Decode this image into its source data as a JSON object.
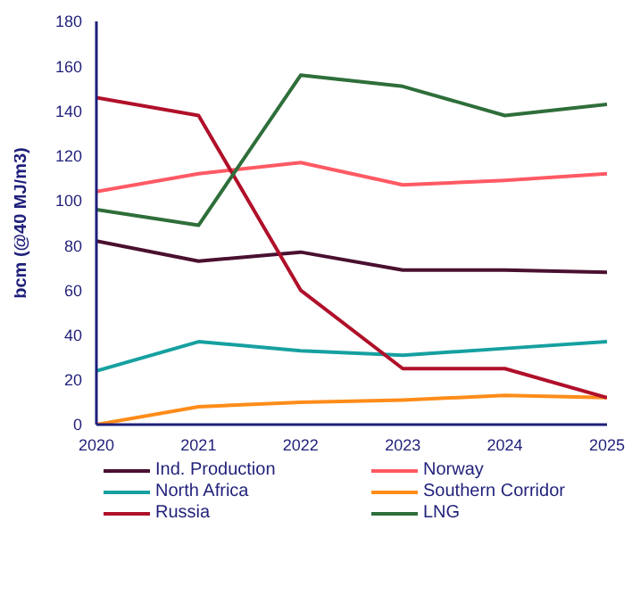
{
  "chart_data": {
    "type": "line",
    "ylabel": "bcm (@40 MJ/m3)",
    "x": [
      2020,
      2021,
      2022,
      2023,
      2024,
      2025
    ],
    "xlim": [
      2020,
      2025
    ],
    "xticks": [
      2020,
      2021,
      2022,
      2023,
      2024,
      2025
    ],
    "ylim": [
      0,
      180
    ],
    "yticks": [
      0,
      20,
      40,
      60,
      80,
      100,
      120,
      140,
      160,
      180
    ],
    "grid": false,
    "legend": "bottom",
    "marker": "none",
    "line_style": "solid",
    "series": [
      {
        "name": "Ind. Production",
        "color": "#4a1030",
        "values": [
          82,
          73,
          77,
          69,
          69,
          68
        ]
      },
      {
        "name": "Norway",
        "color": "#ff5a64",
        "values": [
          104,
          112,
          117,
          107,
          109,
          112
        ]
      },
      {
        "name": "North Africa",
        "color": "#16a0a0",
        "values": [
          24,
          37,
          33,
          31,
          34,
          37
        ]
      },
      {
        "name": "Southern Corridor",
        "color": "#ff8c1a",
        "values": [
          0,
          8,
          10,
          11,
          13,
          12
        ]
      },
      {
        "name": "Russia",
        "color": "#b0102a",
        "values": [
          146,
          138,
          60,
          25,
          25,
          12
        ]
      },
      {
        "name": "LNG",
        "color": "#2e6e3a",
        "values": [
          96,
          89,
          156,
          151,
          138,
          143
        ]
      }
    ]
  }
}
